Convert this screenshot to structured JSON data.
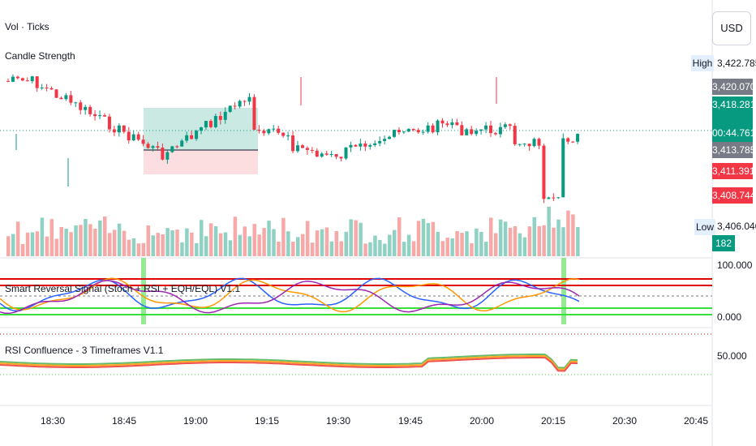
{
  "header": {
    "title_line1": "Vol · Ticks",
    "title_line2": "Candle Strength"
  },
  "currency_button": "USD",
  "price_axis": {
    "high_label": "High",
    "low_label": "Low",
    "high_value": "3,422.785",
    "low_value": "3,406.040",
    "tags": [
      {
        "value": "3,420.070",
        "color": "#787b86"
      },
      {
        "value": "3,418.281",
        "color": "#089981"
      },
      {
        "value": "00:44.761",
        "color": "#089981"
      },
      {
        "value": "3,413.785",
        "color": "#787b86"
      },
      {
        "value": "3,411.391",
        "color": "#f23645"
      },
      {
        "value": "3,408.744",
        "color": "#f23645"
      }
    ],
    "volume_tag": "182"
  },
  "indicator1": {
    "title": "Smart Reversal Signal (Stoch + RSI + EQH/EQL) V1.1",
    "axis_top": "100.000",
    "axis_bottom": "0.000"
  },
  "indicator2": {
    "title": "RSI Confluence - 3 Timeframes V1.1",
    "axis_mid": "50.000"
  },
  "time_axis": [
    "18:30",
    "18:45",
    "19:00",
    "19:15",
    "19:30",
    "19:45",
    "20:00",
    "20:15",
    "20:30",
    "20:45"
  ],
  "colors": {
    "up": "#089981",
    "down": "#f23645",
    "vol_up": "#8fd2c4",
    "vol_down": "#f7a9a7",
    "signal": "#7be37b"
  }
}
